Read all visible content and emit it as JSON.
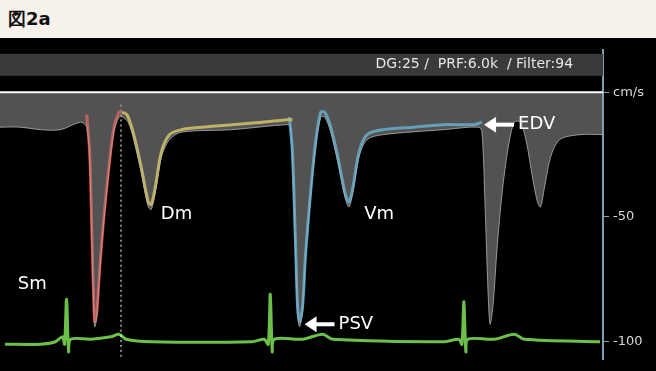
{
  "chart_data": {
    "type": "line",
    "title": "図2a",
    "subtitle": "DG:25 /  PRF:6.0k  / Filter:94",
    "xlim": [
      0,
      598
    ],
    "ylim": [
      -107,
      17
    ],
    "yticks": [
      {
        "value": 0,
        "label": "cm/s"
      },
      -50,
      -100
    ],
    "tick_labels": "y",
    "series": [
      {
        "type": "area",
        "color": "#9a9a9a",
        "x": [
          0,
          20,
          40,
          60,
          80,
          86,
          89,
          91,
          93,
          94,
          96,
          99,
          103,
          108,
          113,
          118,
          122,
          127,
          132,
          140,
          147,
          150,
          154,
          160,
          168,
          180,
          230,
          285,
          288,
          290,
          293,
          295,
          297,
          300,
          303,
          308,
          313,
          318,
          322,
          328,
          335,
          342,
          346,
          350,
          356,
          364,
          380,
          440,
          475,
          478,
          481,
          484,
          486,
          489,
          493,
          498,
          504,
          510,
          516,
          522,
          528,
          533,
          536,
          540,
          546,
          555,
          575,
          598
        ],
        "values": [
          -14,
          -14,
          -15,
          -15,
          -12,
          -14,
          -30,
          -60,
          -88,
          -94,
          -90,
          -72,
          -52,
          -32,
          -16,
          -10,
          -10,
          -12,
          -18,
          -32,
          -46,
          -47,
          -40,
          -26,
          -19,
          -16,
          -15,
          -13,
          -14,
          -28,
          -64,
          -88,
          -94,
          -88,
          -67,
          -42,
          -22,
          -10,
          -10,
          -16,
          -28,
          -42,
          -46,
          -40,
          -26,
          -19,
          -17,
          -15,
          -14,
          -16,
          -45,
          -80,
          -93,
          -85,
          -62,
          -40,
          -22,
          -12,
          -12,
          -20,
          -34,
          -44,
          -46,
          -38,
          -26,
          -19,
          -17,
          -17
        ]
      },
      {
        "type": "line",
        "color": "#e8251e",
        "x": [
          86,
          89,
          91,
          93,
          94,
          96,
          99,
          103,
          108,
          113,
          118,
          121
        ],
        "values": [
          -9,
          -25,
          -55,
          -85,
          -92,
          -88,
          -70,
          -50,
          -30,
          -14,
          -8,
          -8
        ]
      },
      {
        "type": "line",
        "color": "#f2d22e",
        "x": [
          121,
          126,
          132,
          140,
          147,
          150,
          154,
          160,
          168,
          180,
          200,
          230,
          260,
          285,
          290
        ],
        "values": [
          -8,
          -9,
          -16,
          -30,
          -44,
          -45,
          -38,
          -24,
          -17,
          -15,
          -14,
          -13,
          -12,
          -11,
          -11
        ]
      },
      {
        "type": "line",
        "color": "#29a8e0",
        "x": [
          287,
          290,
          293,
          295,
          297,
          300,
          303,
          308,
          313,
          318,
          322,
          328,
          335,
          342,
          346,
          350,
          356,
          364,
          380,
          410,
          440,
          470,
          478
        ],
        "values": [
          -10,
          -24,
          -60,
          -85,
          -92,
          -86,
          -65,
          -40,
          -20,
          -8,
          -8,
          -14,
          -26,
          -40,
          -44,
          -38,
          -24,
          -17,
          -15,
          -14,
          -13,
          -13,
          -12
        ]
      },
      {
        "type": "line",
        "color": "#ffffff",
        "line_style": "dotted",
        "x": [
          120,
          120
        ],
        "values": [
          -5,
          -107
        ]
      },
      {
        "type": "line",
        "color": "#6cc04a",
        "x": [
          5,
          40,
          55,
          62,
          64,
          66,
          68,
          70,
          90,
          110,
          118,
          125,
          150,
          250,
          262,
          266,
          268,
          270,
          272,
          300,
          320,
          330,
          440,
          455,
          458,
          460,
          462,
          464,
          490,
          510,
          520,
          595
        ],
        "values": [
          -101,
          -101,
          -100,
          -98,
          -101,
          -83,
          -104,
          -99,
          -99,
          -98,
          -97,
          -99,
          -100,
          -100,
          -99,
          -101,
          -81,
          -104,
          -99,
          -99,
          -97,
          -99,
          -100,
          -99,
          -101,
          -84,
          -104,
          -99,
          -99,
          -97,
          -99,
          -100
        ]
      }
    ],
    "labels": [
      {
        "text": "Sm",
        "x": 32,
        "y": -77
      },
      {
        "text": "Dm",
        "x": 175,
        "y": -49
      },
      {
        "text": "Vm",
        "x": 376,
        "y": -49
      }
    ],
    "arrows": [
      {
        "text": "EDV",
        "x": 480,
        "y": -13
      },
      {
        "text": "PSV",
        "x": 302,
        "y": -93
      }
    ]
  }
}
